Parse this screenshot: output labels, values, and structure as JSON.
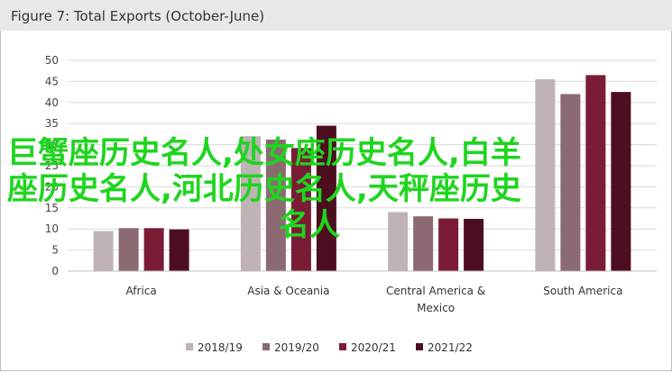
{
  "header": {
    "title": "Figure 7: Total Exports (October-June)"
  },
  "watermark": {
    "line1": "巨蟹座历史名人,处女座历史名人,白羊",
    "line2": "座历史名人,河北历史名人,天秤座历史",
    "line3": "名人",
    "color": "#1ed51e"
  },
  "chart_data": {
    "type": "bar",
    "title": "Figure 7: Total Exports (October-June)",
    "categories": [
      "Africa",
      "Asia & Oceania",
      "Central America & Mexico",
      "South America"
    ],
    "category_lines": [
      [
        "Africa"
      ],
      [
        "Asia & Oceania"
      ],
      [
        "Central America &",
        "Mexico"
      ],
      [
        "South America"
      ]
    ],
    "series": [
      {
        "name": "2018/19",
        "color": "#bfb3b6",
        "values": [
          9.5,
          32,
          14,
          45.5
        ]
      },
      {
        "name": "2019/20",
        "color": "#8c6a72",
        "values": [
          10.2,
          31.2,
          13,
          42
        ]
      },
      {
        "name": "2020/21",
        "color": "#7a1c35",
        "values": [
          10.2,
          29.2,
          12.5,
          46.5
        ]
      },
      {
        "name": "2021/22",
        "color": "#4d0f20",
        "values": [
          9.9,
          34.5,
          12.4,
          42.5
        ]
      }
    ],
    "xlabel": "",
    "ylabel": "",
    "ylim": [
      0,
      50
    ],
    "yticks": [
      "0",
      "5",
      "10",
      "15",
      "20",
      "25",
      "30",
      "35",
      "40",
      "45",
      "50"
    ],
    "grid": true,
    "legend": "bottom"
  }
}
